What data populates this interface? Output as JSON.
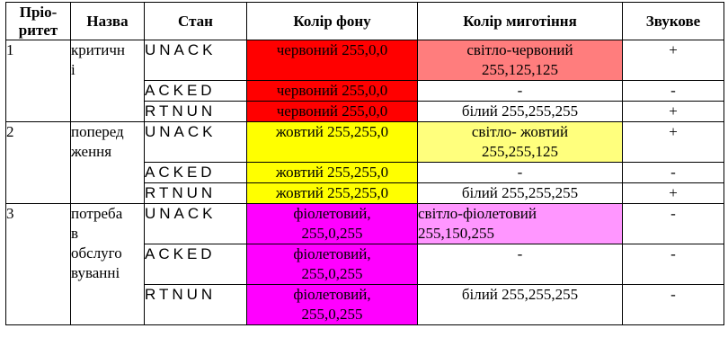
{
  "headers": {
    "priority": "Пріо-\nритет",
    "name": "Назва",
    "state": "Стан",
    "bg_color": "Колір фону",
    "blink_color": "Колір миготіння",
    "sound": "Звукове"
  },
  "colors": {
    "red": "#ff0000",
    "light_red": "#ff7d7d",
    "yellow": "#ffff00",
    "light_yellow": "#ffff7d",
    "magenta": "#ff00ff",
    "light_magenta": "#ff96ff",
    "white": "#ffffff"
  },
  "groups": [
    {
      "priority": "1",
      "name": "критичн\nі",
      "rows": [
        {
          "state": "UNACK",
          "bg": "червоний 255,0,0",
          "blink": "світло-червоний\n255,125,125",
          "sound": "+"
        },
        {
          "state": "ACKED",
          "bg": "червоний 255,0,0",
          "blink": "-",
          "sound": "-"
        },
        {
          "state": "RTNUN",
          "bg": "червоний 255,0,0",
          "blink": "білий 255,255,255",
          "sound": "+"
        }
      ]
    },
    {
      "priority": "2",
      "name": "поперед\nження",
      "rows": [
        {
          "state": "UNACK",
          "bg": "жовтий 255,255,0",
          "blink": "світло- жовтий\n255,255,125",
          "sound": "+"
        },
        {
          "state": "ACKED",
          "bg": "жовтий 255,255,0",
          "blink": "-",
          "sound": "-"
        },
        {
          "state": "RTNUN",
          "bg": "жовтий 255,255,0",
          "blink": "білий 255,255,255",
          "sound": "+"
        }
      ]
    },
    {
      "priority": "3",
      "name": "потреба\nв\nобслуго\nвуванні",
      "rows": [
        {
          "state": "UNACK",
          "bg": "фіолетовий,\n255,0,255",
          "blink": "світло-фіолетовий\n255,150,255",
          "sound": "-"
        },
        {
          "state": "ACKED",
          "bg": "фіолетовий,\n255,0,255",
          "blink": "-",
          "sound": "-"
        },
        {
          "state": "RTNUN",
          "bg": "фіолетовий,\n255,0,255",
          "blink": "білий 255,255,255",
          "sound": "-"
        }
      ]
    }
  ]
}
